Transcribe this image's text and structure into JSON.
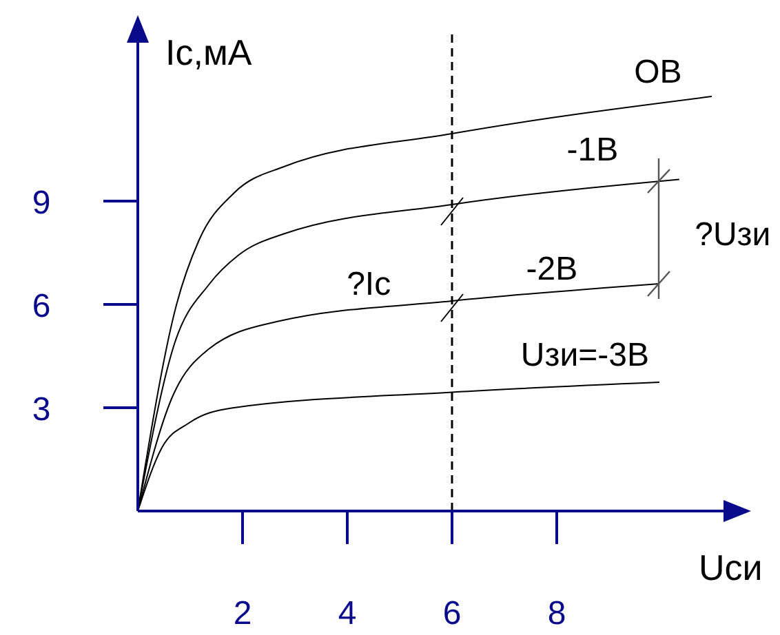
{
  "chart_data": {
    "type": "line",
    "xlabel": "Uси",
    "ylabel": "Iс,мА",
    "xlim": [
      0,
      11.5
    ],
    "ylim": [
      0,
      14
    ],
    "xticks": [
      2,
      4,
      6,
      8
    ],
    "yticks": [
      3,
      6,
      9
    ],
    "grid": false,
    "legend": false,
    "marker": "none",
    "line_style": "solid",
    "series": [
      {
        "name": "OВ",
        "color": "#000000",
        "x": [
          0,
          0.74,
          1.17,
          1.84,
          2.79,
          6,
          10.96
        ],
        "values": [
          0,
          6.0,
          7.87,
          9.24,
          10.0,
          10.96,
          12.04
        ]
      },
      {
        "name": "-1В",
        "color": "#000000",
        "x": [
          0,
          0.7,
          1.36,
          1.93,
          2.79,
          6,
          10.34
        ],
        "values": [
          0,
          4.86,
          6.58,
          7.44,
          8.05,
          8.9,
          9.63
        ]
      },
      {
        "name": "-2В",
        "color": "#000000",
        "x": [
          0,
          0.65,
          1.36,
          2.65,
          6,
          9.96
        ],
        "values": [
          0,
          3.28,
          4.71,
          5.5,
          6.1,
          6.6
        ]
      },
      {
        "name": "Uзи=-3В",
        "color": "#000000",
        "x": [
          0,
          0.46,
          0.98,
          1.79,
          6,
          9.96
        ],
        "values": [
          0,
          1.84,
          2.56,
          2.99,
          3.45,
          3.74
        ]
      }
    ],
    "ref_lines": [
      {
        "axis": "x",
        "value": 6,
        "line_style": "dashed",
        "color": "#000000"
      }
    ],
    "annotations": [
      "?Iс",
      "?Uзи"
    ]
  }
}
